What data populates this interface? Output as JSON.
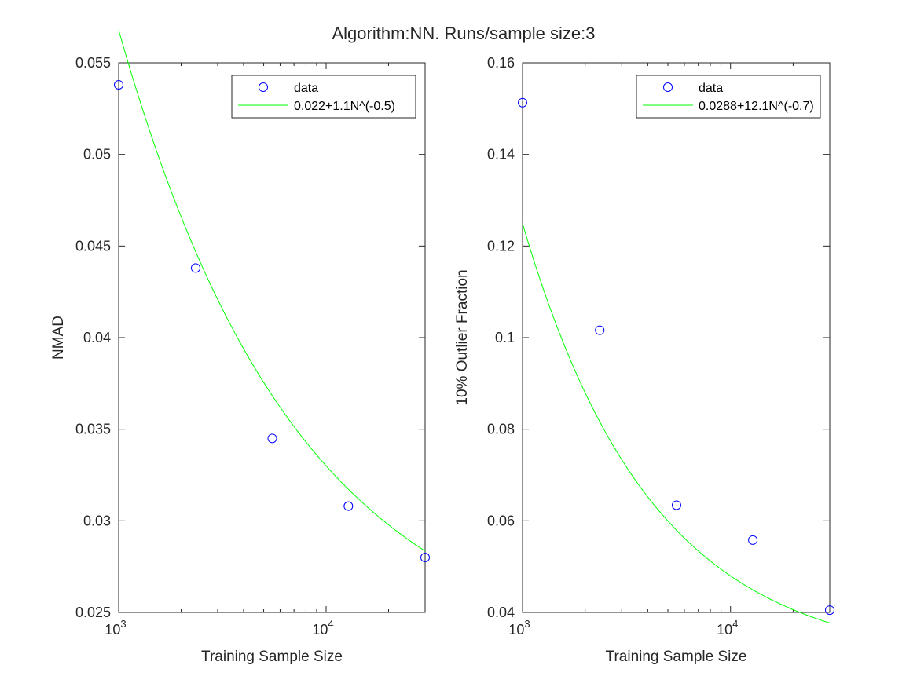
{
  "figure": {
    "title": "Algorithm:NN. Runs/sample size:3"
  },
  "chart_data": [
    {
      "type": "scatter",
      "title": "",
      "xlabel": "Training Sample Size",
      "ylabel": "NMAD",
      "xscale": "log",
      "xlim": [
        1000,
        30000
      ],
      "ylim": [
        0.025,
        0.055
      ],
      "yticks": [
        0.025,
        0.03,
        0.035,
        0.04,
        0.045,
        0.05,
        0.055
      ],
      "ytick_labels": [
        "0.025",
        "0.03",
        "0.035",
        "0.04",
        "0.045",
        "0.05",
        "0.055"
      ],
      "xticks": [
        1000,
        10000
      ],
      "xtick_labels": [
        {
          "base": "10",
          "exp": "3"
        },
        {
          "base": "10",
          "exp": "4"
        }
      ],
      "legend_position": "top-right",
      "series": [
        {
          "name": "data",
          "kind": "markers",
          "marker": "circle",
          "color": "#0000ff",
          "x": [
            1000,
            2350,
            5500,
            12800,
            30000
          ],
          "y": [
            0.0538,
            0.0438,
            0.0345,
            0.0308,
            0.028
          ]
        },
        {
          "name": "0.022+1.1N^(-0.5)",
          "kind": "fit",
          "color": "#00ff00",
          "params": {
            "a": 0.022,
            "b": 1.1,
            "c": -0.5
          }
        }
      ]
    },
    {
      "type": "scatter",
      "title": "",
      "xlabel": "Training Sample Size",
      "ylabel": "10% Outlier Fraction",
      "xscale": "log",
      "xlim": [
        1000,
        30000
      ],
      "ylim": [
        0.04,
        0.16
      ],
      "yticks": [
        0.04,
        0.06,
        0.08,
        0.1,
        0.12,
        0.14,
        0.16
      ],
      "ytick_labels": [
        "0.04",
        "0.06",
        "0.08",
        "0.1",
        "0.12",
        "0.14",
        "0.16"
      ],
      "xticks": [
        1000,
        10000
      ],
      "xtick_labels": [
        {
          "base": "10",
          "exp": "3"
        },
        {
          "base": "10",
          "exp": "4"
        }
      ],
      "legend_position": "top-right",
      "series": [
        {
          "name": "data",
          "kind": "markers",
          "marker": "circle",
          "color": "#0000ff",
          "x": [
            1000,
            2350,
            5500,
            12800,
            30000
          ],
          "y": [
            0.1513,
            0.1016,
            0.0634,
            0.0558,
            0.0405
          ]
        },
        {
          "name": "0.0288+12.1N^(-0.7)",
          "kind": "fit",
          "color": "#00ff00",
          "params": {
            "a": 0.0288,
            "b": 12.1,
            "c": -0.7
          }
        }
      ]
    }
  ]
}
